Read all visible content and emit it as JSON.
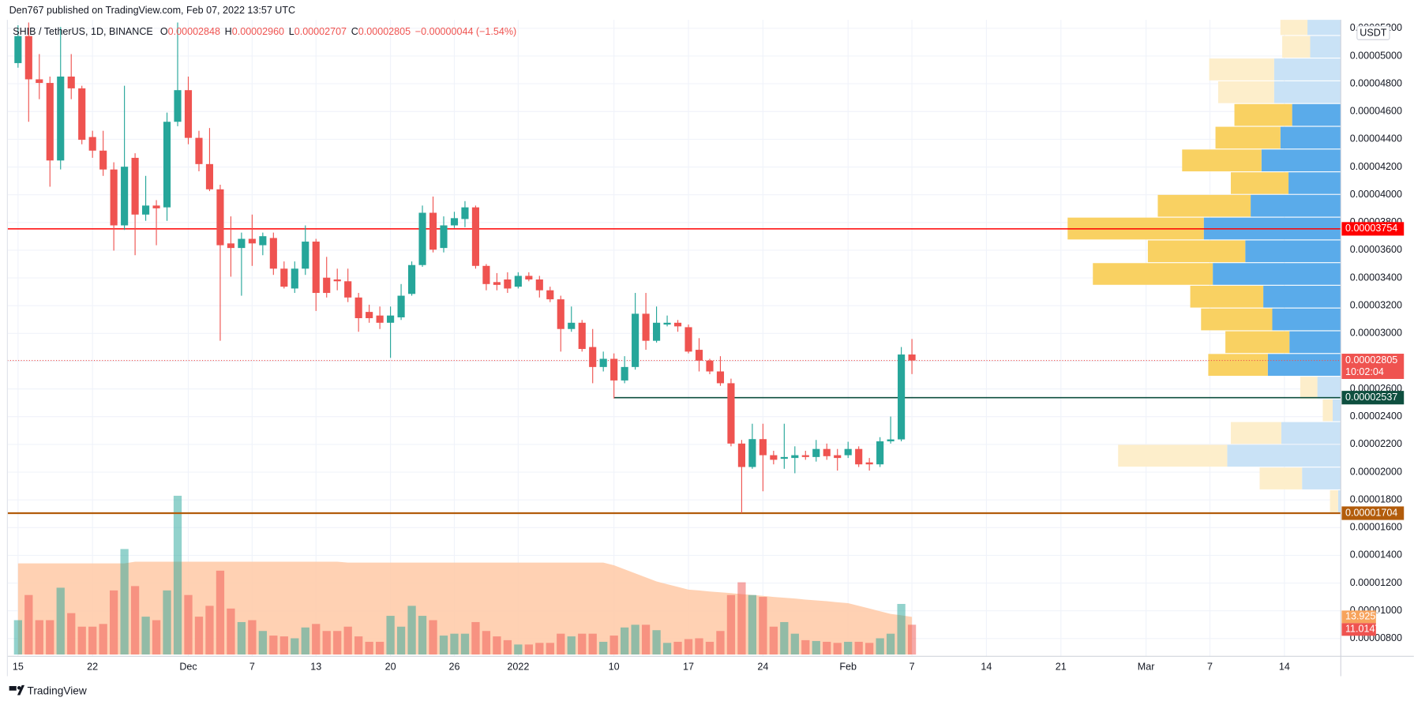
{
  "header": {
    "byline": "Den767 published on TradingView.com, Feb 07, 2022 13:57 UTC",
    "footer": "TradingView"
  },
  "chart_data": {
    "type": "candlestick",
    "symbol": "SHIB / TetherUS, 1D, BINANCE",
    "ohlc_legend": [
      {
        "label": "O",
        "value": "0.00002848"
      },
      {
        "label": "H",
        "value": "0.00002960"
      },
      {
        "label": "L",
        "value": "0.00002707"
      },
      {
        "label": "C",
        "value": "0.00002805"
      }
    ],
    "change": "−0.00000044 (−1.54%)",
    "currency": "USDT",
    "x": [
      0,
      1,
      2,
      3,
      4,
      5,
      6,
      7,
      8,
      9,
      10,
      11,
      12,
      13,
      14,
      15,
      16,
      17,
      18,
      19,
      20,
      21,
      22,
      23,
      24,
      25,
      26,
      27,
      28,
      29,
      30,
      31,
      32,
      33,
      34,
      35,
      36,
      37,
      38,
      39,
      40,
      41,
      42,
      43,
      44,
      45,
      46,
      47,
      48,
      49,
      50,
      51,
      52,
      53,
      54,
      55,
      56,
      57,
      58,
      59,
      60,
      61,
      62,
      63,
      64,
      65,
      66,
      67,
      68,
      69,
      70,
      71,
      72,
      73,
      74,
      75,
      76,
      77,
      78,
      79,
      80,
      81,
      82,
      83,
      84
    ],
    "open": [
      4.949e-05,
      5.144e-05,
      4.832e-05,
      4.806e-05,
      4.247e-05,
      4.852e-05,
      4.767e-05,
      4.416e-05,
      4.318e-05,
      4.182e-05,
      3.779e-05,
      4.266e-05,
      3.857e-05,
      3.922e-05,
      3.909e-05,
      4.526e-05,
      4.754e-05,
      4.41e-05,
      4.221e-05,
      4.039e-05,
      3.649e-05,
      3.616e-05,
      3.682e-05,
      3.636e-05,
      3.688e-05,
      3.467e-05,
      3.324e-05,
      3.467e-05,
      3.662e-05,
      3.402e-05,
      3.389e-05,
      3.376e-05,
      3.259e-05,
      3.155e-05,
      3.129e-05,
      3.077e-05,
      3.116e-05,
      3.285e-05,
      3.493e-05,
      3.87e-05,
      3.616e-05,
      3.779e-05,
      3.825e-05,
      3.909e-05,
      3.487e-05,
      3.37e-05,
      3.389e-05,
      3.337e-05,
      3.415e-05,
      3.389e-05,
      3.311e-05,
      3.246e-05,
      3.032e-05,
      3.077e-05,
      2.902e-05,
      2.758e-05,
      2.817e-05,
      2.661e-05,
      2.758e-05,
      3.142e-05,
      2.947e-05,
      3.064e-05,
      3.077e-05,
      3.045e-05,
      2.882e-05,
      2.804e-05,
      2.726e-05,
      2.641e-05,
      2.206e-05,
      2.037e-05,
      2.238e-05,
      2.122e-05,
      2.096e-05,
      2.102e-05,
      2.122e-05,
      2.109e-05,
      2.167e-05,
      2.122e-05,
      2.122e-05,
      2.167e-05,
      2.07e-05,
      2.056e-05,
      2.222e-05,
      2.236e-05,
      2.848e-05
    ],
    "high": [
      5.222e-05,
      5.242e-05,
      5.014e-05,
      4.852e-05,
      5.209e-05,
      5.014e-05,
      4.786e-05,
      4.461e-05,
      4.461e-05,
      4.234e-05,
      4.786e-05,
      4.299e-05,
      4.136e-05,
      3.961e-05,
      4.592e-05,
      5.242e-05,
      4.852e-05,
      4.461e-05,
      4.481e-05,
      4.072e-05,
      3.844e-05,
      3.727e-05,
      3.857e-05,
      3.727e-05,
      3.727e-05,
      3.519e-05,
      3.519e-05,
      3.779e-05,
      3.682e-05,
      3.552e-05,
      3.467e-05,
      3.467e-05,
      3.292e-05,
      3.207e-05,
      3.194e-05,
      3.194e-05,
      3.356e-05,
      3.519e-05,
      3.922e-05,
      3.987e-05,
      3.844e-05,
      3.877e-05,
      3.954e-05,
      3.922e-05,
      3.5e-05,
      3.435e-05,
      3.441e-05,
      3.441e-05,
      3.441e-05,
      3.415e-05,
      3.337e-05,
      3.272e-05,
      3.194e-05,
      3.097e-05,
      3.032e-05,
      2.869e-05,
      2.856e-05,
      2.836e-05,
      3.292e-05,
      3.292e-05,
      3.194e-05,
      3.129e-05,
      3.097e-05,
      3.064e-05,
      2.966e-05,
      2.817e-05,
      2.836e-05,
      2.674e-05,
      2.232e-05,
      2.349e-05,
      2.349e-05,
      2.154e-05,
      2.349e-05,
      2.186e-05,
      2.154e-05,
      2.232e-05,
      2.206e-05,
      2.167e-05,
      2.219e-05,
      2.186e-05,
      2.102e-05,
      2.252e-05,
      2.401e-05,
      2.902e-05,
      2.96e-05
    ],
    "low": [
      4.916e-05,
      4.526e-05,
      4.689e-05,
      4.058e-05,
      4.182e-05,
      4.689e-05,
      4.364e-05,
      4.266e-05,
      4.136e-05,
      3.597e-05,
      3.746e-05,
      3.564e-05,
      3.812e-05,
      3.636e-05,
      3.812e-05,
      4.494e-05,
      4.364e-05,
      4.169e-05,
      4.026e-05,
      2.947e-05,
      3.409e-05,
      3.272e-05,
      3.487e-05,
      3.564e-05,
      3.422e-05,
      3.324e-05,
      3.292e-05,
      3.422e-05,
      3.162e-05,
      3.259e-05,
      3.311e-05,
      3.226e-05,
      3.012e-05,
      3.077e-05,
      3.032e-05,
      2.824e-05,
      3.097e-05,
      3.272e-05,
      3.48e-05,
      3.584e-05,
      3.584e-05,
      3.76e-05,
      3.766e-05,
      3.467e-05,
      3.311e-05,
      3.311e-05,
      3.292e-05,
      3.324e-05,
      3.376e-05,
      3.259e-05,
      3.226e-05,
      2.869e-05,
      3.012e-05,
      2.869e-05,
      2.641e-05,
      2.726e-05,
      2.531e-05,
      2.641e-05,
      2.739e-05,
      2.882e-05,
      2.934e-05,
      3.051e-05,
      3.012e-05,
      2.856e-05,
      2.726e-05,
      2.706e-05,
      2.622e-05,
      2.186e-05,
      1.704e-05,
      2.024e-05,
      1.862e-05,
      2.056e-05,
      2.024e-05,
      1.992e-05,
      2.089e-05,
      2.076e-05,
      2.089e-05,
      2.011e-05,
      2.102e-05,
      2.037e-05,
      2.011e-05,
      2.037e-05,
      2.206e-05,
      2.222e-05,
      2.707e-05
    ],
    "close": [
      5.144e-05,
      4.832e-05,
      4.806e-05,
      4.247e-05,
      4.852e-05,
      4.767e-05,
      4.396e-05,
      4.318e-05,
      4.182e-05,
      3.779e-05,
      4.202e-05,
      3.857e-05,
      3.922e-05,
      3.902e-05,
      4.526e-05,
      4.754e-05,
      4.41e-05,
      4.221e-05,
      4.039e-05,
      3.636e-05,
      3.616e-05,
      3.682e-05,
      3.649e-05,
      3.701e-05,
      3.467e-05,
      3.337e-05,
      3.467e-05,
      3.662e-05,
      3.292e-05,
      3.292e-05,
      3.376e-05,
      3.259e-05,
      3.11e-05,
      3.11e-05,
      3.077e-05,
      3.129e-05,
      3.272e-05,
      3.493e-05,
      3.87e-05,
      3.604e-05,
      3.779e-05,
      3.831e-05,
      3.909e-05,
      3.487e-05,
      3.356e-05,
      3.35e-05,
      3.324e-05,
      3.415e-05,
      3.389e-05,
      3.311e-05,
      3.246e-05,
      3.032e-05,
      3.077e-05,
      2.888e-05,
      2.758e-05,
      2.817e-05,
      2.661e-05,
      2.758e-05,
      3.142e-05,
      2.947e-05,
      3.077e-05,
      3.077e-05,
      3.051e-05,
      2.869e-05,
      2.804e-05,
      2.726e-05,
      2.641e-05,
      2.206e-05,
      2.037e-05,
      2.238e-05,
      2.122e-05,
      2.089e-05,
      2.109e-05,
      2.122e-05,
      2.109e-05,
      2.167e-05,
      2.115e-05,
      2.102e-05,
      2.167e-05,
      2.056e-05,
      2.056e-05,
      2.222e-05,
      2.236e-05,
      2.848e-05,
      2.805e-05
    ],
    "up_color": "#26a69a",
    "down_color": "#ef5350",
    "xlim": [
      -1,
      124.3
    ],
    "xticks": [
      {
        "value": 0,
        "label": "15"
      },
      {
        "value": 7,
        "label": "22"
      },
      {
        "value": 16,
        "label": "Dec"
      },
      {
        "value": 22,
        "label": "7"
      },
      {
        "value": 28,
        "label": "13"
      },
      {
        "value": 35,
        "label": "20"
      },
      {
        "value": 41,
        "label": "26"
      },
      {
        "value": 47,
        "label": "2022"
      },
      {
        "value": 56,
        "label": "10"
      },
      {
        "value": 63,
        "label": "17"
      },
      {
        "value": 70,
        "label": "24"
      },
      {
        "value": 78,
        "label": "Feb"
      },
      {
        "value": 84,
        "label": "7"
      },
      {
        "value": 91,
        "label": "14"
      },
      {
        "value": 98,
        "label": "21"
      },
      {
        "value": 106,
        "label": "Mar"
      },
      {
        "value": 112,
        "label": "7"
      },
      {
        "value": 119,
        "label": "14"
      }
    ],
    "ylim": [
      6.72e-06,
      5.261e-05
    ],
    "yticks": [
      {
        "value": 5.2e-05,
        "label": "0.00005200"
      },
      {
        "value": 5e-05,
        "label": "0.00005000"
      },
      {
        "value": 4.8e-05,
        "label": "0.00004800"
      },
      {
        "value": 4.6e-05,
        "label": "0.00004600"
      },
      {
        "value": 4.4e-05,
        "label": "0.00004400"
      },
      {
        "value": 4.2e-05,
        "label": "0.00004200"
      },
      {
        "value": 4e-05,
        "label": "0.00004000"
      },
      {
        "value": 3.8e-05,
        "label": "0.00003800"
      },
      {
        "value": 3.6e-05,
        "label": "0.00003600"
      },
      {
        "value": 3.4e-05,
        "label": "0.00003400"
      },
      {
        "value": 3.2e-05,
        "label": "0.00003200"
      },
      {
        "value": 3e-05,
        "label": "0.00003000"
      },
      {
        "value": 2.8e-05,
        "label": "0.00002800"
      },
      {
        "value": 2.6e-05,
        "label": "0.00002600"
      },
      {
        "value": 2.4e-05,
        "label": "0.00002400"
      },
      {
        "value": 2.2e-05,
        "label": "0.00002200"
      },
      {
        "value": 2e-05,
        "label": "0.00002000"
      },
      {
        "value": 1.8e-05,
        "label": "0.00001800"
      },
      {
        "value": 1.6e-05,
        "label": "0.00001600"
      },
      {
        "value": 1.4e-05,
        "label": "0.00001400"
      },
      {
        "value": 1.2e-05,
        "label": "0.00001200"
      },
      {
        "value": 1e-05,
        "label": "0.00001000"
      },
      {
        "value": 8e-06,
        "label": "0.00000800"
      }
    ],
    "grid": true,
    "price_lines": [
      {
        "value": 3.754e-05,
        "label": "0.00003754",
        "color": "#ff0000"
      },
      {
        "value": 2.537e-05,
        "label": "0.00002537",
        "color": "#0e4f3f",
        "from": 56
      },
      {
        "value": 1.704e-05,
        "label": "0.00001704",
        "color": "#b25c0b"
      }
    ],
    "last_price": {
      "value": 2.805e-05,
      "label": "0.00002805",
      "countdown": "10:02:04"
    },
    "volume": {
      "values": [
        12.7,
        22,
        12.7,
        12.7,
        24.7,
        15.3,
        10.3,
        10.3,
        11.3,
        23.7,
        39,
        25.3,
        14,
        12.7,
        23.7,
        58.7,
        22,
        14,
        18,
        31,
        17,
        12,
        12.7,
        8.7,
        7,
        6.7,
        6,
        10,
        11.3,
        8.7,
        8.7,
        10.3,
        6.7,
        4.7,
        4.7,
        14.3,
        10.3,
        18,
        14.3,
        12.7,
        7,
        7.7,
        7.7,
        12,
        8.7,
        6.7,
        5.3,
        3.7,
        3.7,
        4.3,
        4.3,
        7.7,
        6.7,
        7.7,
        7.7,
        4.7,
        7,
        10,
        11,
        11,
        9,
        4.3,
        4.7,
        5.7,
        6,
        4.7,
        8.7,
        22,
        26.7,
        22,
        21.3,
        10.3,
        12,
        7.7,
        5.3,
        5,
        4.7,
        4.3,
        4.7,
        4.7,
        4.3,
        6,
        7.7,
        18.7,
        11.014
      ],
      "ma": [
        33.7,
        33.7,
        33.7,
        33.7,
        33.7,
        33.7,
        33.7,
        33.7,
        33.7,
        33.7,
        33.7,
        34.3,
        34.3,
        34.3,
        34.3,
        34.3,
        34.3,
        34.3,
        34.3,
        34.3,
        34.3,
        34.3,
        34.3,
        34.3,
        34.3,
        34.3,
        34.3,
        34.3,
        34.3,
        34.3,
        34.3,
        34,
        34,
        34,
        34,
        34,
        34,
        34,
        34,
        34,
        34,
        34,
        34,
        34,
        34,
        34,
        34,
        34,
        34,
        34,
        34,
        34,
        34,
        34,
        34,
        34,
        33,
        31.5,
        30,
        28.5,
        27,
        26,
        25,
        24,
        23.7,
        23.3,
        23,
        22.7,
        22.3,
        22,
        21.7,
        21.3,
        21,
        20.7,
        20.3,
        20,
        19.7,
        19.3,
        19,
        18,
        17,
        16,
        15,
        14.5,
        13.925
      ],
      "vlim": [
        0,
        80
      ],
      "last_label": "11.014T",
      "ma_last_label": "13.925T",
      "up_color": "#26a69a",
      "down_color": "#ef5350",
      "ma_color": "#ffc9a6",
      "ma_label_color": "#f7a35c"
    },
    "volume_profile": {
      "bins": [
        5.309e-05,
        5.145e-05,
        4.982e-05,
        4.818e-05,
        4.654e-05,
        4.49e-05,
        4.326e-05,
        4.162e-05,
        3.999e-05,
        3.835e-05,
        3.671e-05,
        3.507e-05,
        3.344e-05,
        3.18e-05,
        3.016e-05,
        2.852e-05,
        2.688e-05,
        2.524e-05,
        2.361e-05,
        2.197e-05,
        2.033e-05,
        1.869e-05,
        1.706e-05
      ],
      "up": [
        37,
        34,
        74,
        74,
        54,
        67,
        88,
        58,
        100,
        152,
        106,
        142,
        86,
        76,
        57,
        81,
        26,
        9,
        66,
        126,
        43,
        3
      ],
      "down": [
        30,
        31,
        72,
        62,
        64,
        72,
        88,
        64,
        103,
        151,
        108,
        133,
        81,
        79,
        71,
        66,
        19,
        11,
        56,
        121,
        47,
        9
      ],
      "value_area": [
        2.688e-05,
        4.654e-05
      ],
      "up_color": "#5aabea",
      "down_color": "#f9d162",
      "up_pale": "#c9e2f6",
      "down_pale": "#fdeecb"
    }
  }
}
